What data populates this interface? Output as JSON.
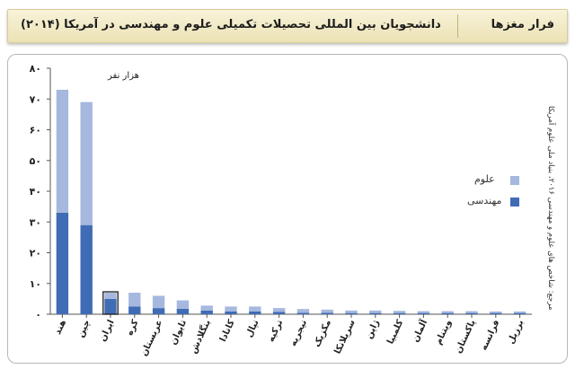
{
  "header": {
    "tag": "فرار مغزها",
    "title": "دانشجویان بین المللی تحصیلات تکمیلی علوم و مهندسی در آمریکا (۲۰۱۴)"
  },
  "source_note": "مرجع: شاخص های علوم و مهندسی ۲۰۱۶، بنیاد ملی علوم آمریکا",
  "colors": {
    "science": "#a6b8de",
    "engineering": "#3f6cb5"
  },
  "chart_data": {
    "type": "bar",
    "stacked": true,
    "unit_label": "هزار نفر",
    "categories": [
      "هند",
      "چین",
      "ایران",
      "کره",
      "عربستان",
      "تایوان",
      "بنگلادش",
      "کانادا",
      "نپال",
      "ترکیه",
      "نیجریه",
      "مکزیک",
      "سریلانکا",
      "ژاپن",
      "کلمبیا",
      "آلمان",
      "ویتنام",
      "پاکستان",
      "فرانسه",
      "برزیل"
    ],
    "series": [
      {
        "name": "مهندسی",
        "values": [
          33,
          29,
          5,
          2.5,
          2,
          1.8,
          1.2,
          0.9,
          0.9,
          0.8,
          0.5,
          0.5,
          0.4,
          0.4,
          0.4,
          0.4,
          0.4,
          0.4,
          0.4,
          0.4
        ]
      },
      {
        "name": "علوم",
        "values": [
          40,
          40,
          2,
          4.5,
          4,
          2.7,
          1.6,
          1.6,
          1.6,
          1.2,
          1.2,
          1.0,
          0.8,
          0.8,
          0.7,
          0.6,
          0.6,
          0.6,
          0.5,
          0.5
        ]
      }
    ],
    "yticks": [
      "۰",
      "۱۰",
      "۲۰",
      "۳۰",
      "۴۰",
      "۵۰",
      "۶۰",
      "۷۰",
      "۸۰"
    ],
    "ylim": [
      0,
      80
    ],
    "legend": [
      "علوم",
      "مهندسی"
    ],
    "legend_position": "right"
  }
}
